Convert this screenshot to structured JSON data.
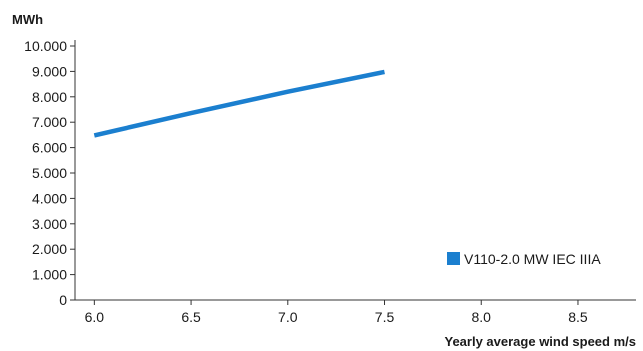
{
  "chart_data": {
    "type": "line",
    "title": "",
    "ylabel": "MWh",
    "xlabel": "Yearly average wind speed m/s",
    "x_ticks": [
      "6.0",
      "6.5",
      "7.0",
      "7.5",
      "8.0",
      "8.5"
    ],
    "y_ticks": [
      "0",
      "1.000",
      "2.000",
      "3.000",
      "4.000",
      "5.000",
      "6.000",
      "7.000",
      "8.000",
      "9.000",
      "10.000"
    ],
    "xlim": [
      5.9,
      8.8
    ],
    "ylim": [
      0,
      10000
    ],
    "grid": false,
    "legend_position": "bottom-right",
    "series": [
      {
        "name": "V110-2.0 MW IEC IIIA",
        "color": "#1b7fcf",
        "x": [
          6.0,
          6.5,
          7.0,
          7.5
        ],
        "y": [
          6480,
          7360,
          8200,
          8980
        ]
      }
    ]
  }
}
